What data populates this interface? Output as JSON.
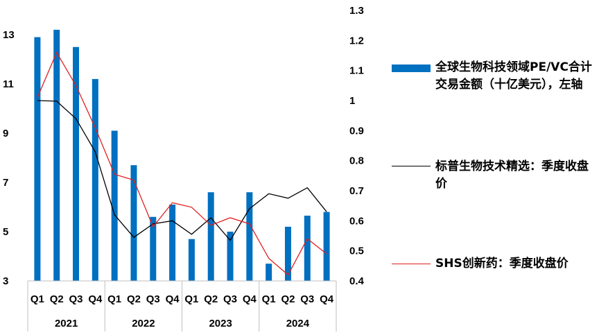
{
  "chart_data": {
    "type": "bar+line",
    "x_quarters": [
      "Q1",
      "Q2",
      "Q3",
      "Q4",
      "Q1",
      "Q2",
      "Q3",
      "Q4",
      "Q1",
      "Q2",
      "Q3",
      "Q4",
      "Q1",
      "Q2",
      "Q3",
      "Q4"
    ],
    "x_years": [
      "2021",
      "2022",
      "2023",
      "2024"
    ],
    "left_axis": {
      "ylim": [
        3,
        13
      ],
      "ticks": [
        "3",
        "5",
        "7",
        "9",
        "11",
        "13"
      ]
    },
    "right_axis": {
      "ylim": [
        0.4,
        1.3
      ],
      "ticks": [
        "0.4",
        "0.5",
        "0.6",
        "0.7",
        "0.8",
        "0.9",
        "1",
        "1.1",
        "1.2",
        "1.3"
      ]
    },
    "series": [
      {
        "name": "全球生物科技领域PE/VC合计交易金额（十亿美元），左轴",
        "type": "bar",
        "axis": "left",
        "color": "#0070C0",
        "values": [
          12.9,
          13.2,
          12.5,
          11.2,
          9.1,
          7.7,
          5.6,
          6.1,
          4.7,
          6.6,
          5.0,
          6.6,
          3.7,
          5.2,
          5.65,
          5.8
        ]
      },
      {
        "name": "标普生物技术精选：季度收盘价",
        "type": "line",
        "axis": "right",
        "color": "#000000",
        "values": [
          1.0,
          0.998,
          0.94,
          0.83,
          0.62,
          0.545,
          0.59,
          0.6,
          0.555,
          0.61,
          0.535,
          0.64,
          0.69,
          0.675,
          0.71,
          0.63
        ]
      },
      {
        "name": "SHS创新药：季度收盘价",
        "type": "line",
        "axis": "right",
        "color": "#E02020",
        "values": [
          1.01,
          1.16,
          1.05,
          0.91,
          0.755,
          0.735,
          0.58,
          0.66,
          0.645,
          0.585,
          0.61,
          0.59,
          0.475,
          0.42,
          0.54,
          0.49
        ]
      }
    ],
    "grid": false,
    "legend_position": "right"
  }
}
